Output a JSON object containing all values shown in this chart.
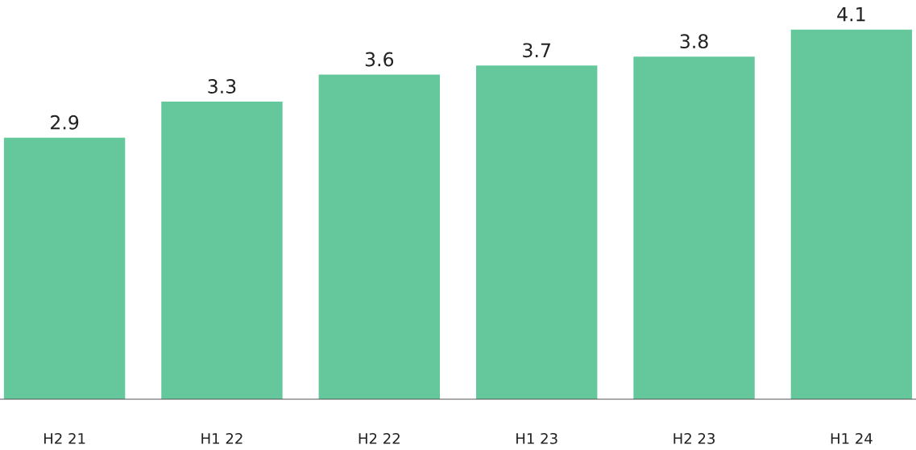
{
  "chart_data": {
    "type": "bar",
    "categories": [
      "H2 21",
      "H1 22",
      "H2 22",
      "H1 23",
      "H2 23",
      "H1 24"
    ],
    "values": [
      2.9,
      3.3,
      3.6,
      3.7,
      3.8,
      4.1
    ],
    "color": "#64c89c",
    "data_labels": true,
    "grid": false,
    "legend": false
  }
}
